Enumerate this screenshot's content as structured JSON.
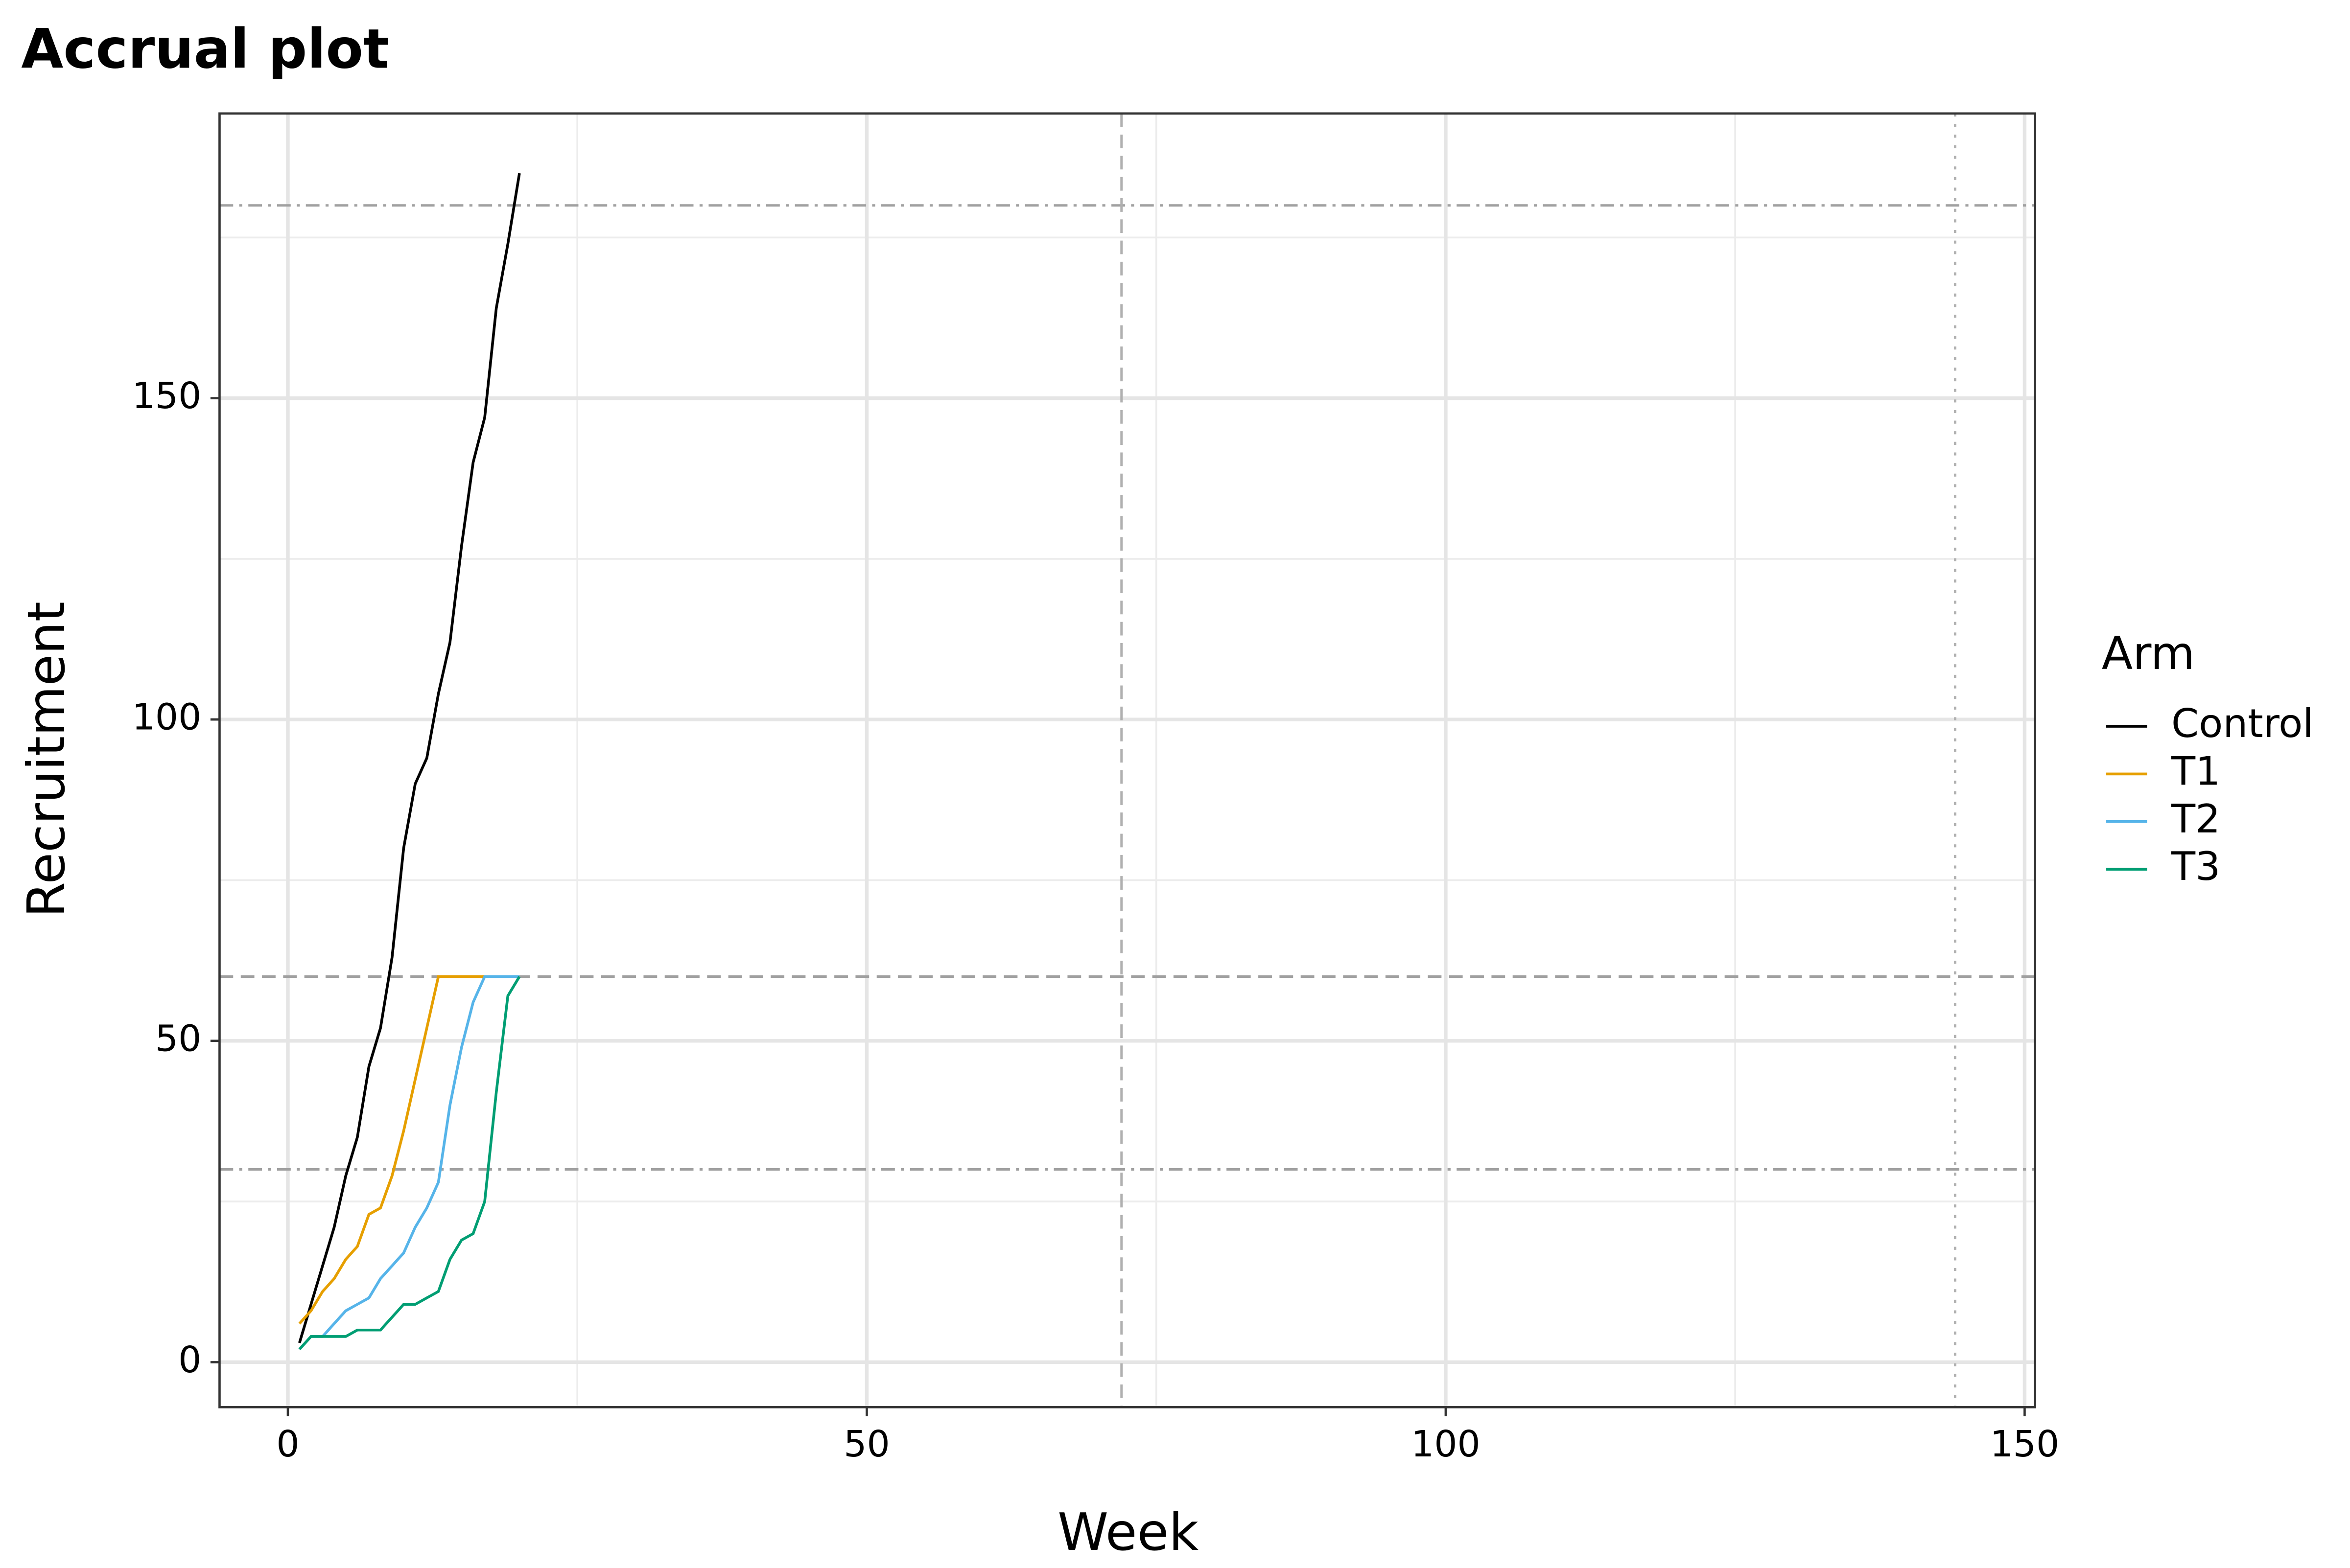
{
  "chart_data": {
    "type": "line",
    "title": "Accrual plot",
    "x_label": "Week",
    "y_label": "Recruitment",
    "x": [
      1,
      2,
      3,
      4,
      5,
      6,
      7,
      8,
      9,
      10,
      11,
      12,
      13,
      14,
      15,
      16,
      17,
      18,
      19,
      20
    ],
    "series": [
      {
        "name": "Control",
        "color": "#000000",
        "values": [
          3,
          9,
          15,
          21,
          29,
          35,
          46,
          52,
          63,
          80,
          90,
          94,
          104,
          112,
          127,
          140,
          147,
          164,
          174,
          185
        ]
      },
      {
        "name": "T1",
        "color": "#E69F00",
        "values": [
          6,
          8,
          11,
          13,
          16,
          18,
          23,
          24,
          29,
          36,
          44,
          52,
          60,
          60,
          60,
          60,
          60,
          null,
          null,
          null
        ]
      },
      {
        "name": "T2",
        "color": "#56B4E9",
        "values": [
          2,
          4,
          4,
          6,
          8,
          9,
          10,
          13,
          15,
          17,
          21,
          24,
          28,
          40,
          49,
          56,
          60,
          60,
          60,
          60
        ]
      },
      {
        "name": "T3",
        "color": "#009E73",
        "values": [
          2,
          4,
          4,
          4,
          4,
          5,
          5,
          5,
          7,
          9,
          9,
          10,
          11,
          16,
          19,
          20,
          25,
          42,
          57,
          60
        ]
      }
    ],
    "xlim": [
      -5.9,
      150.9
    ],
    "xticks": [
      0,
      50,
      100,
      150
    ],
    "xminor": [
      25,
      75,
      125
    ],
    "ylim": [
      -7,
      194.3
    ],
    "yticks": [
      0,
      50,
      100,
      150
    ],
    "yminor": [
      25,
      75,
      125,
      175
    ],
    "hlines": [
      {
        "value": 180,
        "style": "dotdash"
      },
      {
        "value": 60,
        "style": "dashed"
      },
      {
        "value": 30,
        "style": "dotdash"
      }
    ],
    "vlines": [
      {
        "value": 72,
        "style": "dashed"
      },
      {
        "value": 144,
        "style": "dotted"
      }
    ],
    "legend_title": "Arm",
    "legend": "right",
    "grid": true
  }
}
